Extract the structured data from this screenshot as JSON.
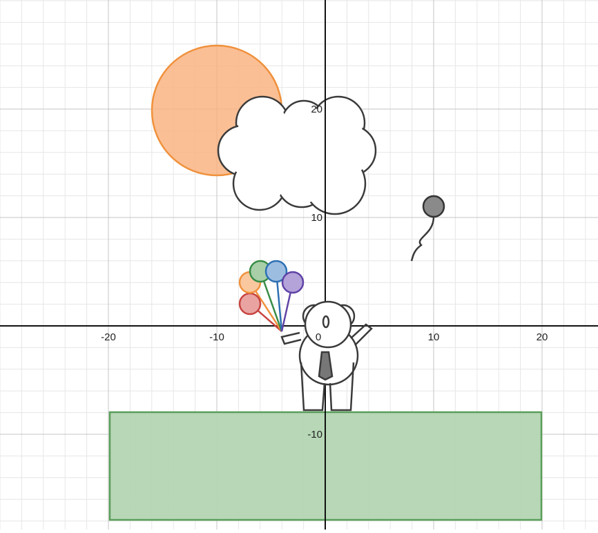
{
  "axes": {
    "xticks": [
      -20,
      -10,
      0,
      10,
      20
    ],
    "yticks": [
      -10,
      10,
      20
    ]
  }
}
